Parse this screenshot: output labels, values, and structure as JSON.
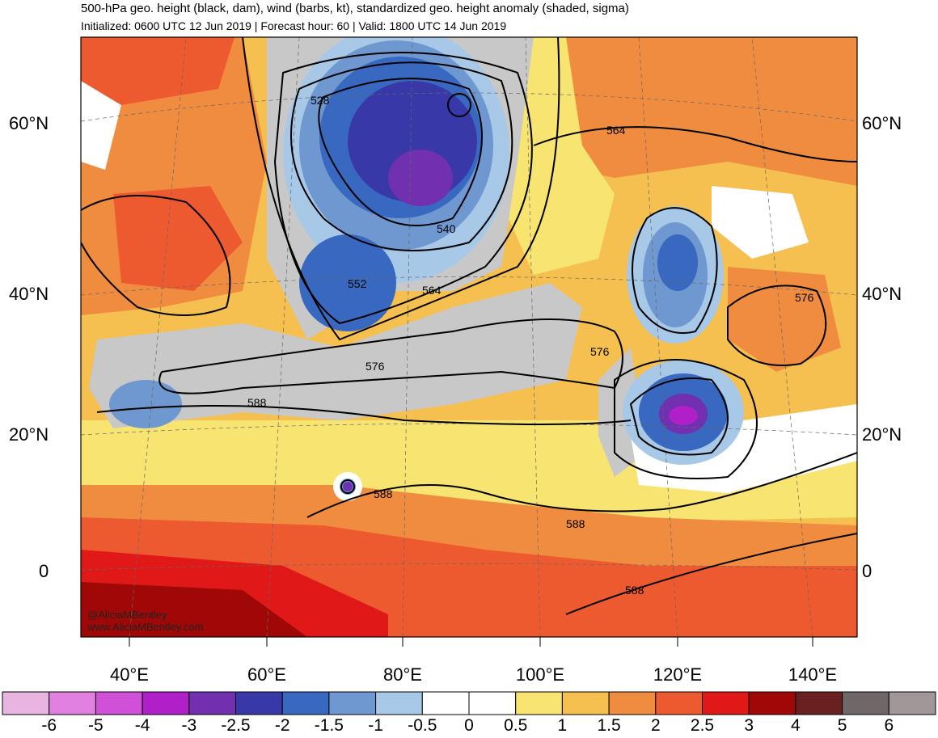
{
  "header": {
    "title": "500-hPa geo. height (black, dam), wind (barbs, kt), standardized geo. height anomaly (shaded, sigma)",
    "subtitle": "Initialized: 0600 UTC 12 Jun 2019 | Forecast hour: 60 | Valid: 1800 UTC 14 Jun 2019"
  },
  "axes": {
    "lat_labels_left": [
      "60°N",
      "40°N",
      "20°N",
      "0"
    ],
    "lat_labels_right": [
      "60°N",
      "40°N",
      "20°N",
      "0"
    ],
    "lon_labels": [
      "40°E",
      "60°E",
      "80°E",
      "100°E",
      "120°E",
      "140°E"
    ]
  },
  "contour_labels": [
    "528",
    "540",
    "552",
    "564",
    "564",
    "576",
    "576",
    "576",
    "588",
    "588",
    "588",
    "588"
  ],
  "watermark": {
    "line1": "@AliciaMBentley",
    "line2": "www.AliciaMBentley.com"
  },
  "colorbar": {
    "labels": [
      "-6",
      "-5",
      "-4",
      "-3",
      "-2.5",
      "-2",
      "-1.5",
      "-1",
      "-0.5",
      "0",
      "0.5",
      "1",
      "1.5",
      "2",
      "2.5",
      "3",
      "4",
      "5",
      "6"
    ],
    "colors": [
      "#e8b4e0",
      "#e080e0",
      "#d050d8",
      "#b020c8",
      "#7030b0",
      "#3838a8",
      "#3868c0",
      "#6f98d0",
      "#a8c8e8",
      "#ffffff",
      "#ffffff",
      "#f8e470",
      "#f5c050",
      "#f08c40",
      "#ee5a30",
      "#e01818",
      "#a00808",
      "#6a2020",
      "#706868",
      "#a09898"
    ]
  },
  "colors": {
    "gray_band": "#c8c8c8",
    "contour": "#000000",
    "coastline": "#555555"
  }
}
